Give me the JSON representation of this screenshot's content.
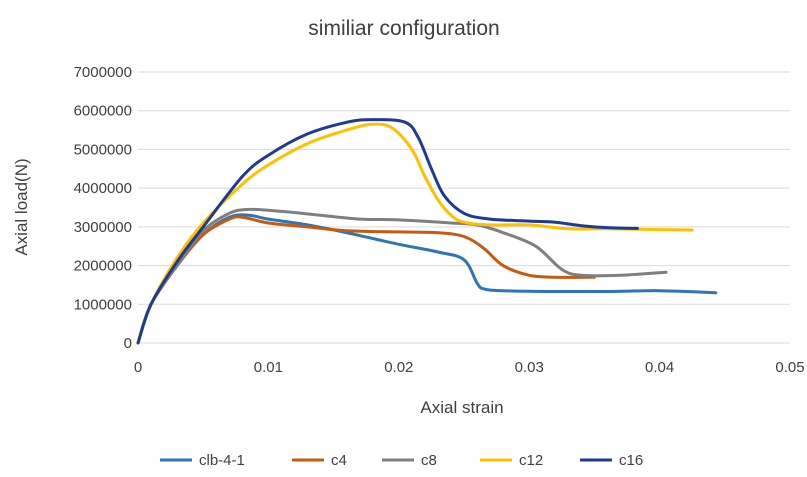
{
  "chart_data": {
    "type": "line",
    "title": "similiar configuration",
    "xlabel": "Axial strain",
    "ylabel": "Axial load(N)",
    "xlim": [
      0,
      0.05
    ],
    "ylim": [
      0,
      7000000
    ],
    "x_ticks": [
      "0",
      "0.01",
      "0.02",
      "0.03",
      "0.04",
      "0.05"
    ],
    "x_tick_values": [
      0,
      0.01,
      0.02,
      0.03,
      0.04,
      0.05
    ],
    "y_ticks": [
      "0",
      "1000000",
      "2000000",
      "3000000",
      "4000000",
      "5000000",
      "6000000",
      "7000000"
    ],
    "y_tick_values": [
      0,
      1000000,
      2000000,
      3000000,
      4000000,
      5000000,
      6000000,
      7000000
    ],
    "grid": "horizontal",
    "legend_position": "bottom",
    "series": [
      {
        "name": "clb-4-1",
        "color": "#2e75b6",
        "points": [
          [
            0,
            0
          ],
          [
            0.001,
            1000000
          ],
          [
            0.003,
            2000000
          ],
          [
            0.005,
            2800000
          ],
          [
            0.007,
            3250000
          ],
          [
            0.0085,
            3300000
          ],
          [
            0.01,
            3200000
          ],
          [
            0.013,
            3050000
          ],
          [
            0.016,
            2850000
          ],
          [
            0.02,
            2550000
          ],
          [
            0.023,
            2350000
          ],
          [
            0.025,
            2150000
          ],
          [
            0.026,
            1550000
          ],
          [
            0.0265,
            1400000
          ],
          [
            0.028,
            1350000
          ],
          [
            0.032,
            1330000
          ],
          [
            0.036,
            1330000
          ],
          [
            0.04,
            1350000
          ],
          [
            0.0443,
            1300000
          ]
        ]
      },
      {
        "name": "c4",
        "color": "#c55a11",
        "points": [
          [
            0,
            0
          ],
          [
            0.001,
            1000000
          ],
          [
            0.003,
            2000000
          ],
          [
            0.005,
            2800000
          ],
          [
            0.007,
            3200000
          ],
          [
            0.008,
            3250000
          ],
          [
            0.01,
            3100000
          ],
          [
            0.013,
            3000000
          ],
          [
            0.016,
            2900000
          ],
          [
            0.02,
            2870000
          ],
          [
            0.023,
            2850000
          ],
          [
            0.025,
            2750000
          ],
          [
            0.0265,
            2450000
          ],
          [
            0.028,
            2000000
          ],
          [
            0.03,
            1750000
          ],
          [
            0.032,
            1700000
          ],
          [
            0.035,
            1700000
          ]
        ]
      },
      {
        "name": "c8",
        "color": "#7f7f7f",
        "points": [
          [
            0,
            0
          ],
          [
            0.001,
            1000000
          ],
          [
            0.003,
            2000000
          ],
          [
            0.005,
            2900000
          ],
          [
            0.007,
            3350000
          ],
          [
            0.0085,
            3450000
          ],
          [
            0.011,
            3400000
          ],
          [
            0.014,
            3300000
          ],
          [
            0.017,
            3200000
          ],
          [
            0.02,
            3180000
          ],
          [
            0.024,
            3100000
          ],
          [
            0.026,
            3050000
          ],
          [
            0.028,
            2850000
          ],
          [
            0.0305,
            2500000
          ],
          [
            0.0325,
            1900000
          ],
          [
            0.034,
            1750000
          ],
          [
            0.037,
            1750000
          ],
          [
            0.0405,
            1830000
          ]
        ]
      },
      {
        "name": "c12",
        "color": "#ffc000",
        "points": [
          [
            0,
            0
          ],
          [
            0.001,
            1000000
          ],
          [
            0.003,
            2200000
          ],
          [
            0.005,
            3100000
          ],
          [
            0.008,
            4100000
          ],
          [
            0.01,
            4600000
          ],
          [
            0.013,
            5150000
          ],
          [
            0.016,
            5500000
          ],
          [
            0.018,
            5650000
          ],
          [
            0.0195,
            5550000
          ],
          [
            0.021,
            5000000
          ],
          [
            0.022,
            4300000
          ],
          [
            0.023,
            3700000
          ],
          [
            0.024,
            3300000
          ],
          [
            0.025,
            3120000
          ],
          [
            0.027,
            3050000
          ],
          [
            0.03,
            3050000
          ],
          [
            0.033,
            2950000
          ],
          [
            0.036,
            2950000
          ],
          [
            0.04,
            2930000
          ],
          [
            0.0425,
            2920000
          ]
        ]
      },
      {
        "name": "c16",
        "color": "#1f3a93",
        "points": [
          [
            0,
            0
          ],
          [
            0.001,
            1000000
          ],
          [
            0.003,
            2100000
          ],
          [
            0.005,
            3000000
          ],
          [
            0.008,
            4300000
          ],
          [
            0.01,
            4850000
          ],
          [
            0.013,
            5400000
          ],
          [
            0.016,
            5700000
          ],
          [
            0.018,
            5770000
          ],
          [
            0.0205,
            5700000
          ],
          [
            0.0215,
            5300000
          ],
          [
            0.0225,
            4500000
          ],
          [
            0.0235,
            3800000
          ],
          [
            0.025,
            3350000
          ],
          [
            0.027,
            3200000
          ],
          [
            0.03,
            3150000
          ],
          [
            0.032,
            3120000
          ],
          [
            0.034,
            3030000
          ],
          [
            0.036,
            2980000
          ],
          [
            0.0383,
            2960000
          ]
        ]
      }
    ]
  }
}
